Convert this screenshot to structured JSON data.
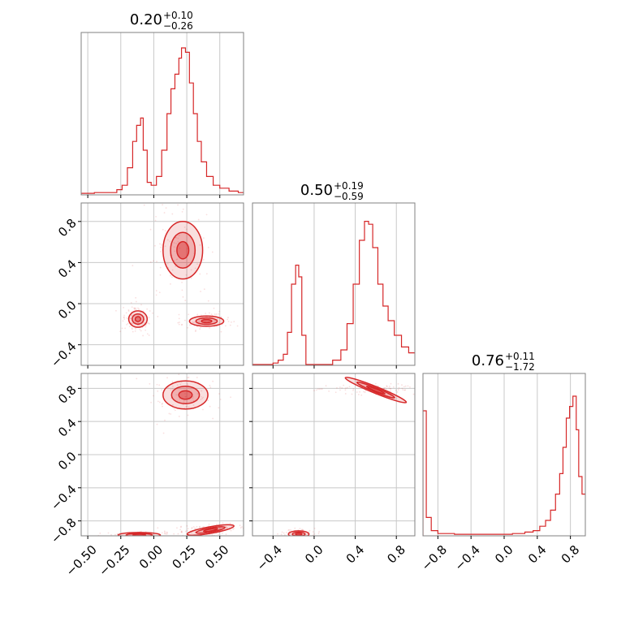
{
  "chart_data": {
    "type": "corner",
    "accent_color": "#d62728",
    "parameters": [
      {
        "index": 0,
        "median": "0.20",
        "upper": "+0.10",
        "lower": "−0.26",
        "range": [
          -0.55,
          0.68
        ]
      },
      {
        "index": 1,
        "median": "0.50",
        "upper": "+0.19",
        "lower": "−0.59",
        "range": [
          -0.6,
          0.98
        ]
      },
      {
        "index": 2,
        "median": "0.76",
        "upper": "+0.11",
        "lower": "−1.72",
        "range": [
          -0.98,
          0.98
        ]
      }
    ],
    "ticks": {
      "p0_x": [
        -0.5,
        -0.25,
        0.0,
        0.25,
        0.5
      ],
      "p0_x_labels": [
        "−0.50",
        "−0.25",
        "0.00",
        "0.25",
        "0.50"
      ],
      "p1_x": [
        -0.4,
        0.0,
        0.4,
        0.8
      ],
      "p1_x_labels": [
        "−0.4",
        "0.0",
        "0.4",
        "0.8"
      ],
      "p2_x": [
        -0.8,
        -0.4,
        0.0,
        0.4,
        0.8
      ],
      "p2_x_labels": [
        "−0.8",
        "−0.4",
        "0.0",
        "0.4",
        "0.8"
      ],
      "p1_y": [
        -0.4,
        0.0,
        0.4,
        0.8
      ],
      "p1_y_labels": [
        "−0.4",
        "0.0",
        "0.4",
        "0.8"
      ],
      "p2_y": [
        -0.8,
        -0.4,
        0.0,
        0.4,
        0.8
      ],
      "p2_y_labels": [
        "−0.8",
        "−0.4",
        "0.0",
        "0.4",
        "0.8"
      ]
    },
    "histograms": [
      {
        "param": 0,
        "bins": [
          {
            "x": -0.55,
            "v": 0.005
          },
          {
            "x": -0.45,
            "v": 0.01
          },
          {
            "x": -0.35,
            "v": 0.01
          },
          {
            "x": -0.28,
            "v": 0.03
          },
          {
            "x": -0.24,
            "v": 0.06
          },
          {
            "x": -0.2,
            "v": 0.18
          },
          {
            "x": -0.16,
            "v": 0.36
          },
          {
            "x": -0.13,
            "v": 0.47
          },
          {
            "x": -0.1,
            "v": 0.52
          },
          {
            "x": -0.08,
            "v": 0.3
          },
          {
            "x": -0.05,
            "v": 0.08
          },
          {
            "x": -0.02,
            "v": 0.06
          },
          {
            "x": 0.02,
            "v": 0.12
          },
          {
            "x": 0.06,
            "v": 0.3
          },
          {
            "x": 0.1,
            "v": 0.55
          },
          {
            "x": 0.13,
            "v": 0.72
          },
          {
            "x": 0.16,
            "v": 0.82
          },
          {
            "x": 0.19,
            "v": 0.93
          },
          {
            "x": 0.21,
            "v": 1.0
          },
          {
            "x": 0.24,
            "v": 0.97
          },
          {
            "x": 0.27,
            "v": 0.76
          },
          {
            "x": 0.3,
            "v": 0.55
          },
          {
            "x": 0.33,
            "v": 0.36
          },
          {
            "x": 0.36,
            "v": 0.22
          },
          {
            "x": 0.4,
            "v": 0.12
          },
          {
            "x": 0.45,
            "v": 0.06
          },
          {
            "x": 0.5,
            "v": 0.04
          },
          {
            "x": 0.57,
            "v": 0.02
          },
          {
            "x": 0.64,
            "v": 0.01
          }
        ]
      },
      {
        "param": 1,
        "bins": [
          {
            "x": -0.6,
            "v": 0.0
          },
          {
            "x": -0.4,
            "v": 0.01
          },
          {
            "x": -0.35,
            "v": 0.03
          },
          {
            "x": -0.3,
            "v": 0.07
          },
          {
            "x": -0.26,
            "v": 0.22
          },
          {
            "x": -0.22,
            "v": 0.55
          },
          {
            "x": -0.18,
            "v": 0.68
          },
          {
            "x": -0.15,
            "v": 0.6
          },
          {
            "x": -0.12,
            "v": 0.2
          },
          {
            "x": -0.08,
            "v": 0.0
          },
          {
            "x": 0.0,
            "v": 0.0
          },
          {
            "x": 0.18,
            "v": 0.03
          },
          {
            "x": 0.26,
            "v": 0.1
          },
          {
            "x": 0.32,
            "v": 0.28
          },
          {
            "x": 0.38,
            "v": 0.55
          },
          {
            "x": 0.44,
            "v": 0.85
          },
          {
            "x": 0.49,
            "v": 0.98
          },
          {
            "x": 0.53,
            "v": 0.96
          },
          {
            "x": 0.57,
            "v": 0.8
          },
          {
            "x": 0.62,
            "v": 0.55
          },
          {
            "x": 0.67,
            "v": 0.4
          },
          {
            "x": 0.72,
            "v": 0.3
          },
          {
            "x": 0.78,
            "v": 0.2
          },
          {
            "x": 0.85,
            "v": 0.12
          },
          {
            "x": 0.92,
            "v": 0.08
          }
        ]
      },
      {
        "param": 2,
        "bins": [
          {
            "x": -0.98,
            "v": 0.85
          },
          {
            "x": -0.94,
            "v": 0.12
          },
          {
            "x": -0.88,
            "v": 0.03
          },
          {
            "x": -0.8,
            "v": 0.01
          },
          {
            "x": -0.6,
            "v": 0.005
          },
          {
            "x": -0.2,
            "v": 0.005
          },
          {
            "x": 0.1,
            "v": 0.01
          },
          {
            "x": 0.25,
            "v": 0.02
          },
          {
            "x": 0.35,
            "v": 0.03
          },
          {
            "x": 0.43,
            "v": 0.06
          },
          {
            "x": 0.5,
            "v": 0.1
          },
          {
            "x": 0.56,
            "v": 0.17
          },
          {
            "x": 0.62,
            "v": 0.28
          },
          {
            "x": 0.67,
            "v": 0.42
          },
          {
            "x": 0.71,
            "v": 0.6
          },
          {
            "x": 0.75,
            "v": 0.8
          },
          {
            "x": 0.79,
            "v": 0.88
          },
          {
            "x": 0.83,
            "v": 0.95
          },
          {
            "x": 0.87,
            "v": 0.72
          },
          {
            "x": 0.9,
            "v": 0.4
          },
          {
            "x": 0.94,
            "v": 0.28
          }
        ]
      }
    ],
    "contours_2d": [
      {
        "x_param": 0,
        "y_param": 1,
        "clusters": [
          {
            "x": 0.22,
            "y": 0.52,
            "rx": 0.15,
            "ry": 0.28,
            "rot": 0
          },
          {
            "x": -0.12,
            "y": -0.15,
            "rx": 0.07,
            "ry": 0.08,
            "rot": 0
          },
          {
            "x": 0.4,
            "y": -0.17,
            "rx": 0.13,
            "ry": 0.05,
            "rot": 0
          }
        ]
      },
      {
        "x_param": 0,
        "y_param": 2,
        "clusters": [
          {
            "x": 0.24,
            "y": 0.72,
            "rx": 0.17,
            "ry": 0.17,
            "rot": 0
          },
          {
            "x": -0.11,
            "y": -0.97,
            "rx": 0.16,
            "ry": 0.03,
            "rot": 0
          },
          {
            "x": 0.43,
            "y": -0.91,
            "rx": 0.18,
            "ry": 0.04,
            "rot": -10
          }
        ]
      },
      {
        "x_param": 1,
        "y_param": 2,
        "clusters": [
          {
            "x": 0.6,
            "y": 0.78,
            "rx": 0.32,
            "ry": 0.04,
            "rot": 22
          },
          {
            "x": -0.15,
            "y": -0.96,
            "rx": 0.1,
            "ry": 0.04,
            "rot": 0
          }
        ]
      }
    ]
  }
}
